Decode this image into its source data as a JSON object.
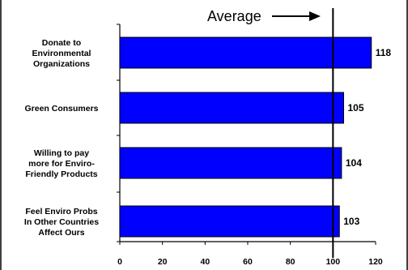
{
  "chart_data": {
    "type": "bar",
    "orientation": "horizontal",
    "categories": [
      "Donate to Environmental Organizations",
      "Green Consumers",
      "Willing to pay more for Enviro-Friendly Products",
      "Feel Enviro Probs In Other Countries Affect Ours"
    ],
    "category_lines": [
      [
        "Donate to",
        "Environmental",
        "Organizations"
      ],
      [
        "Green Consumers"
      ],
      [
        "Willing to pay",
        "more for Enviro-",
        "Friendly Products"
      ],
      [
        "Feel Enviro Probs",
        "In Other Countries",
        "Affect Ours"
      ]
    ],
    "values": [
      118,
      105,
      104,
      103
    ],
    "data_labels": [
      "118",
      "105",
      "104",
      "103"
    ],
    "xlim": [
      0,
      120
    ],
    "x_ticks": [
      0,
      20,
      40,
      60,
      80,
      100,
      120
    ],
    "x_tick_labels": [
      "0",
      "20",
      "40",
      "60",
      "80",
      "100",
      "120"
    ],
    "reference_line": {
      "value": 100,
      "label": "Average"
    },
    "bar_color": "#0000ff",
    "grid": false,
    "title": "",
    "xlabel": "",
    "ylabel": ""
  }
}
